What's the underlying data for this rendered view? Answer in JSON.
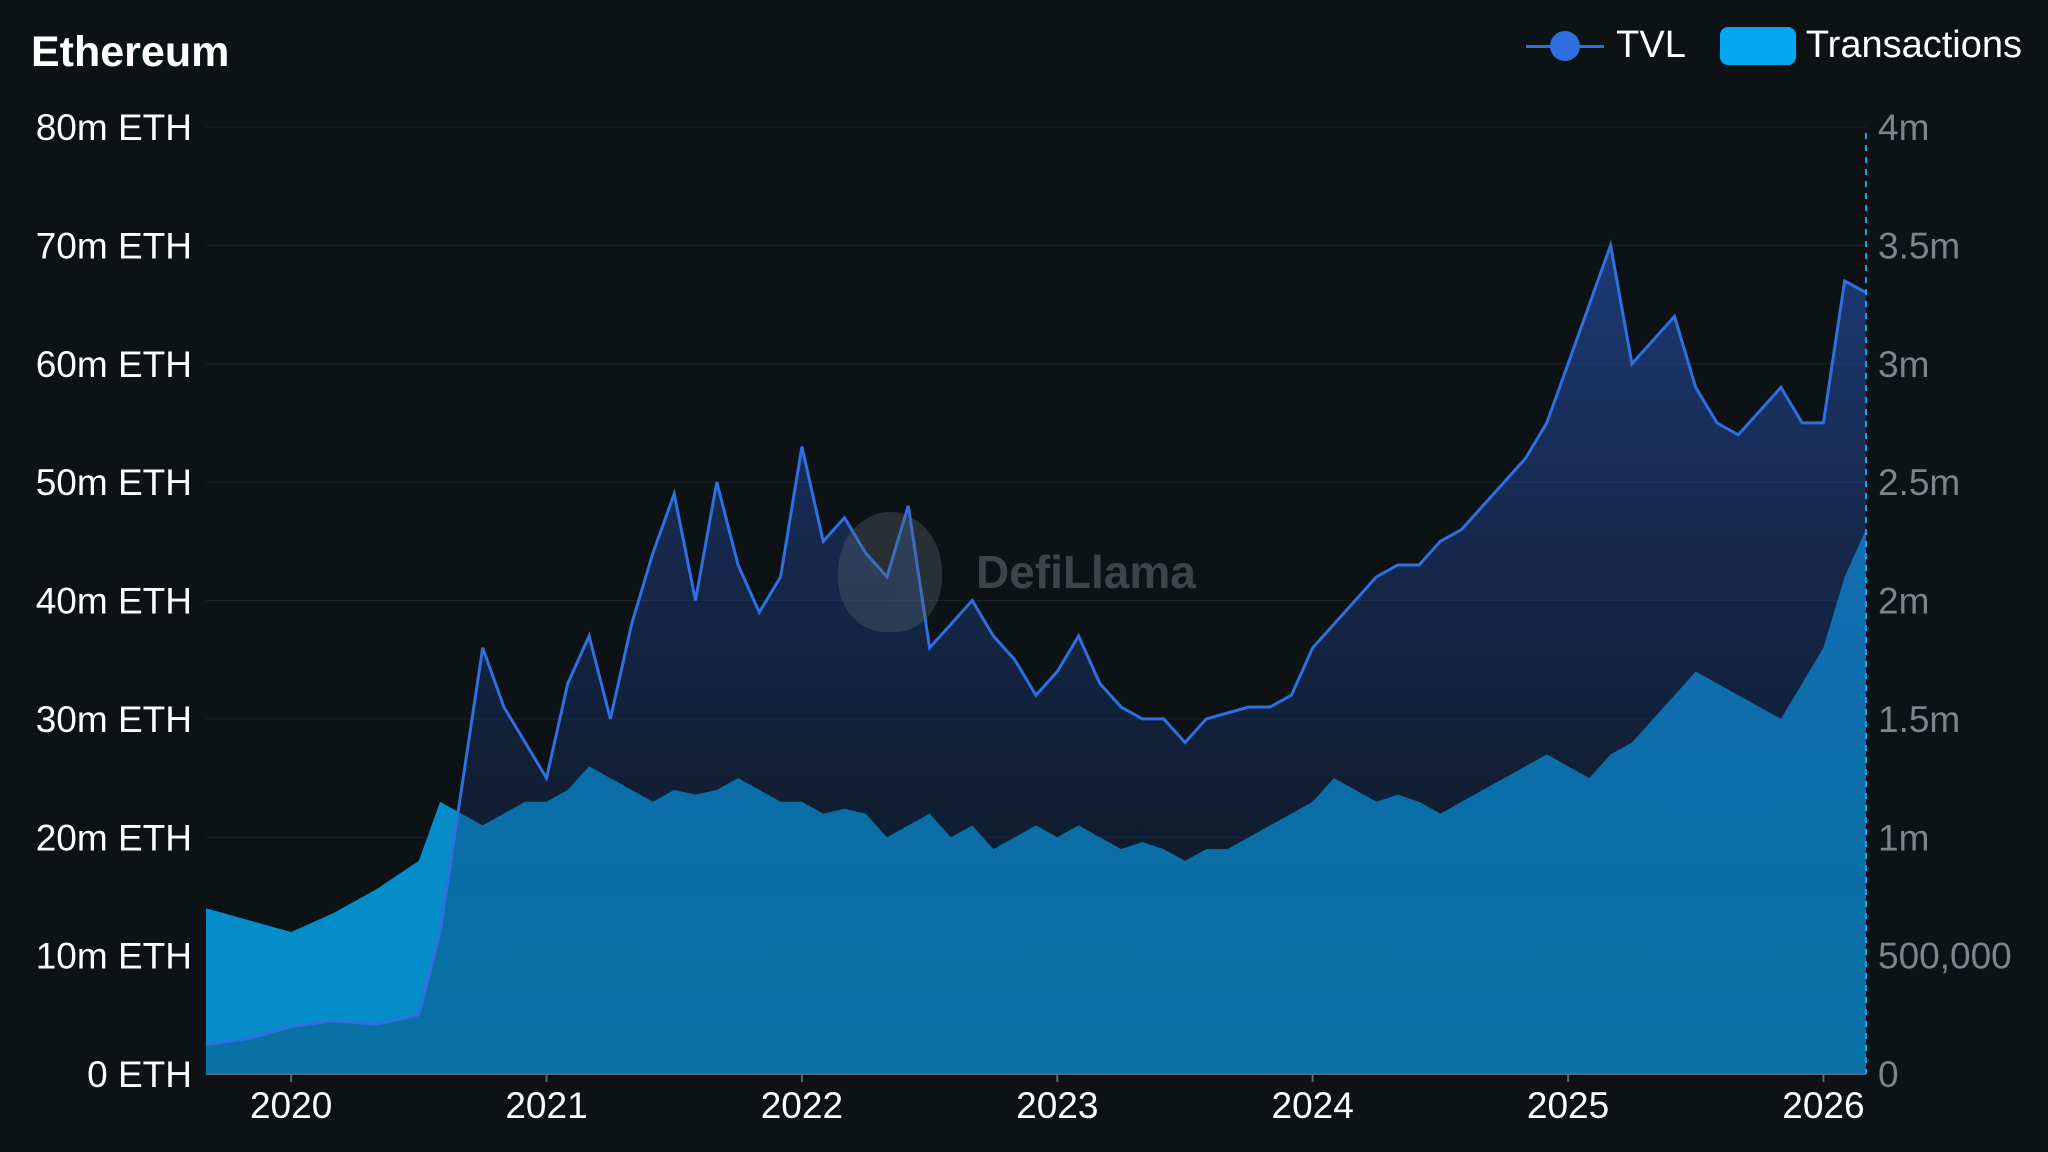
{
  "header": {
    "title": "Ethereum"
  },
  "legend": {
    "tvl_label": "TVL",
    "transactions_label": "Transactions",
    "tvl_color": "#2f6fe0",
    "transactions_color": "#04a8f2"
  },
  "watermark": {
    "text": "DefiLlama",
    "icon": "llama-logo-icon"
  },
  "chart_data": {
    "type": "area",
    "title": "Ethereum",
    "legend_position": "top-right",
    "grid": true,
    "x_ticks": [
      "2020",
      "2021",
      "2022",
      "2023",
      "2024",
      "2025",
      "2026"
    ],
    "x_range": [
      "2019-09",
      "2026-03"
    ],
    "y_left": {
      "ticks": [
        "0 ETH",
        "10m ETH",
        "20m ETH",
        "30m ETH",
        "40m ETH",
        "50m ETH",
        "60m ETH",
        "70m ETH",
        "80m ETH"
      ],
      "range": [
        0,
        80000000
      ],
      "unit": "ETH"
    },
    "y_right": {
      "ticks": [
        "0",
        "500,000",
        "1m",
        "1.5m",
        "2m",
        "2.5m",
        "3m",
        "3.5m",
        "4m"
      ],
      "range": [
        0,
        4000000
      ]
    },
    "series": [
      {
        "name": "TVL",
        "axis": "left",
        "color": "#2f6fe0",
        "x": [
          "2019-09",
          "2019-11",
          "2020-01",
          "2020-03",
          "2020-05",
          "2020-07",
          "2020-08",
          "2020-09",
          "2020-10",
          "2020-11",
          "2020-12",
          "2021-01",
          "2021-02",
          "2021-03",
          "2021-04",
          "2021-05",
          "2021-06",
          "2021-07",
          "2021-08",
          "2021-09",
          "2021-10",
          "2021-11",
          "2021-12",
          "2022-01",
          "2022-02",
          "2022-03",
          "2022-04",
          "2022-05",
          "2022-06",
          "2022-07",
          "2022-08",
          "2022-09",
          "2022-10",
          "2022-11",
          "2022-12",
          "2023-01",
          "2023-02",
          "2023-03",
          "2023-04",
          "2023-05",
          "2023-06",
          "2023-07",
          "2023-08",
          "2023-09",
          "2023-10",
          "2023-11",
          "2023-12",
          "2024-01",
          "2024-02",
          "2024-03",
          "2024-04",
          "2024-05",
          "2024-06",
          "2024-07",
          "2024-08",
          "2024-09",
          "2024-10",
          "2024-11",
          "2024-12",
          "2025-01",
          "2025-02",
          "2025-03",
          "2025-04",
          "2025-05",
          "2025-06",
          "2025-07",
          "2025-08",
          "2025-09",
          "2025-10",
          "2025-11",
          "2025-12",
          "2026-01",
          "2026-02",
          "2026-03"
        ],
        "values": [
          2500000,
          3000000,
          4000000,
          4500000,
          4200000,
          5000000,
          12000000,
          24000000,
          36000000,
          31000000,
          28000000,
          25000000,
          33000000,
          37000000,
          30000000,
          38000000,
          44000000,
          49000000,
          40000000,
          50000000,
          43000000,
          39000000,
          42000000,
          53000000,
          45000000,
          47000000,
          44000000,
          42000000,
          48000000,
          36000000,
          38000000,
          40000000,
          37000000,
          35000000,
          32000000,
          34000000,
          37000000,
          33000000,
          31000000,
          30000000,
          30000000,
          28000000,
          30000000,
          30500000,
          31000000,
          31000000,
          32000000,
          36000000,
          38000000,
          40000000,
          42000000,
          43000000,
          43000000,
          45000000,
          46000000,
          48000000,
          50000000,
          52000000,
          55000000,
          60000000,
          65000000,
          70000000,
          60000000,
          62000000,
          64000000,
          58000000,
          55000000,
          54000000,
          56000000,
          58000000,
          55000000,
          55000000,
          67000000,
          66000000
        ]
      },
      {
        "name": "Transactions",
        "axis": "right",
        "color": "#04a8f2",
        "x": [
          "2019-09",
          "2019-11",
          "2020-01",
          "2020-03",
          "2020-05",
          "2020-07",
          "2020-08",
          "2020-09",
          "2020-10",
          "2020-11",
          "2020-12",
          "2021-01",
          "2021-02",
          "2021-03",
          "2021-04",
          "2021-05",
          "2021-06",
          "2021-07",
          "2021-08",
          "2021-09",
          "2021-10",
          "2021-11",
          "2021-12",
          "2022-01",
          "2022-02",
          "2022-03",
          "2022-04",
          "2022-05",
          "2022-06",
          "2022-07",
          "2022-08",
          "2022-09",
          "2022-10",
          "2022-11",
          "2022-12",
          "2023-01",
          "2023-02",
          "2023-03",
          "2023-04",
          "2023-05",
          "2023-06",
          "2023-07",
          "2023-08",
          "2023-09",
          "2023-10",
          "2023-11",
          "2023-12",
          "2024-01",
          "2024-02",
          "2024-03",
          "2024-04",
          "2024-05",
          "2024-06",
          "2024-07",
          "2024-08",
          "2024-09",
          "2024-10",
          "2024-11",
          "2024-12",
          "2025-01",
          "2025-02",
          "2025-03",
          "2025-04",
          "2025-05",
          "2025-06",
          "2025-07",
          "2025-08",
          "2025-09",
          "2025-10",
          "2025-11",
          "2025-12",
          "2026-01",
          "2026-02",
          "2026-03"
        ],
        "values": [
          700000,
          650000,
          600000,
          680000,
          780000,
          900000,
          1150000,
          1100000,
          1050000,
          1100000,
          1150000,
          1150000,
          1200000,
          1300000,
          1250000,
          1200000,
          1150000,
          1200000,
          1180000,
          1200000,
          1250000,
          1200000,
          1150000,
          1150000,
          1100000,
          1120000,
          1100000,
          1000000,
          1050000,
          1100000,
          1000000,
          1050000,
          950000,
          1000000,
          1050000,
          1000000,
          1050000,
          1000000,
          950000,
          980000,
          950000,
          900000,
          950000,
          950000,
          1000000,
          1050000,
          1100000,
          1150000,
          1250000,
          1200000,
          1150000,
          1180000,
          1150000,
          1100000,
          1150000,
          1200000,
          1250000,
          1300000,
          1350000,
          1300000,
          1250000,
          1350000,
          1400000,
          1500000,
          1600000,
          1700000,
          1650000,
          1600000,
          1550000,
          1500000,
          1650000,
          1800000,
          2100000,
          2300000
        ]
      }
    ]
  }
}
